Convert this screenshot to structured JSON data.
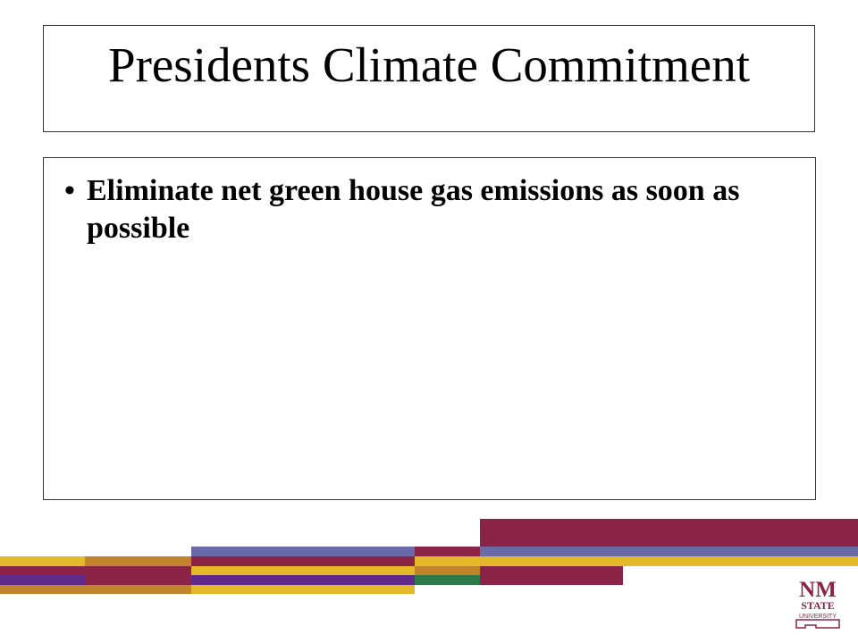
{
  "slide": {
    "title": "Presidents Climate Commitment",
    "bullets": [
      {
        "text": "Eliminate net green house gas emissions as soon as possible"
      }
    ]
  },
  "logo": {
    "line1": "NM",
    "line2": "STATE",
    "line3": "UNIVERSITY",
    "color": "#8b2346"
  },
  "colors": {
    "maroon": "#8b2346",
    "gold": "#e3b92a",
    "orange": "#c2842b",
    "periwinkle": "#6a6aa8",
    "purple": "#5f2a8a",
    "green": "#2e7a4a"
  }
}
